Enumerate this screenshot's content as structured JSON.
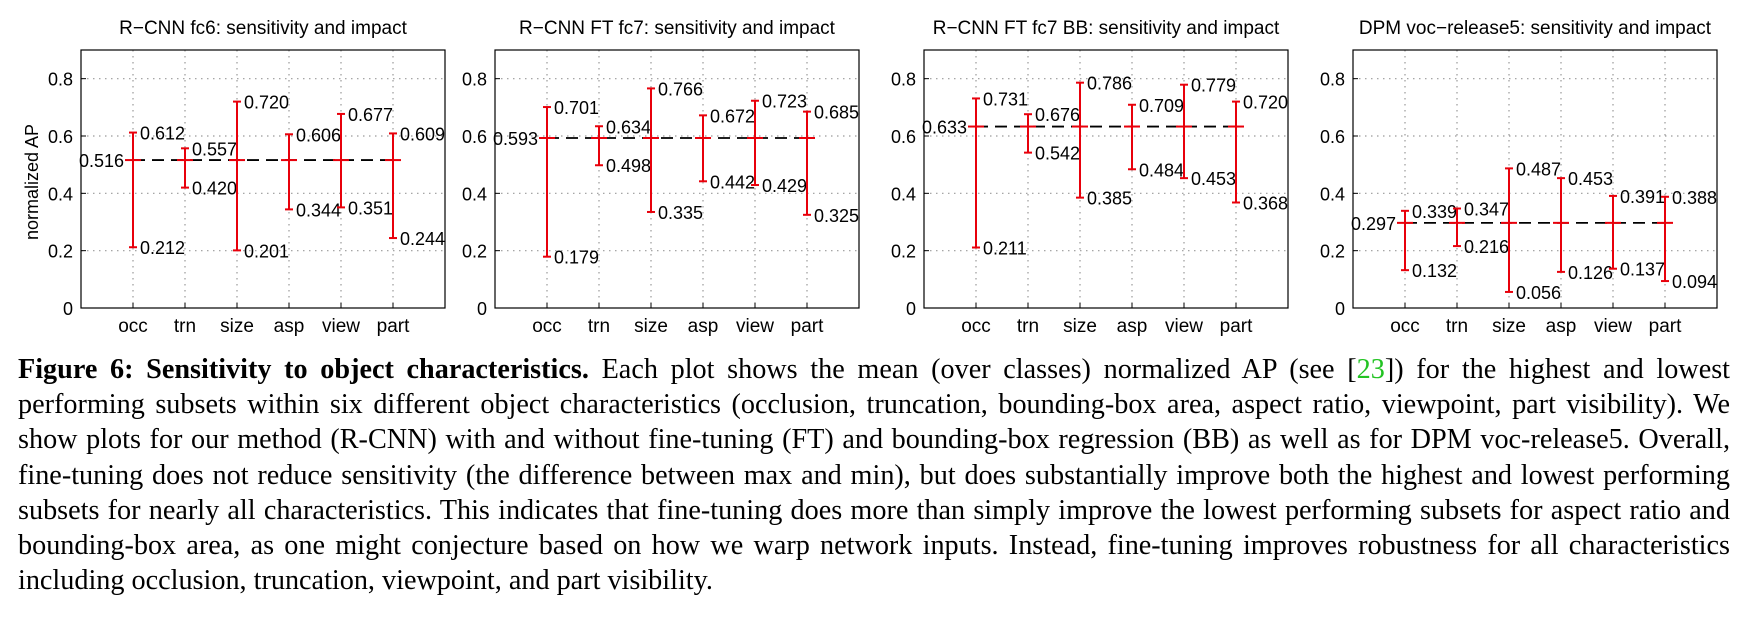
{
  "chart_data": [
    {
      "type": "errorbar",
      "title": "R−CNN fc6: sensitivity and impact",
      "ylabel": "normalized AP",
      "ylim": [
        0,
        0.9
      ],
      "yticks": [
        "0",
        "0.2",
        "0.4",
        "0.6",
        "0.8"
      ],
      "categories": [
        "occ",
        "trn",
        "size",
        "asp",
        "view",
        "part"
      ],
      "mean": 0.516,
      "mean_label": "0.516",
      "high": [
        0.612,
        0.557,
        0.72,
        0.606,
        0.677,
        0.609
      ],
      "low": [
        0.212,
        0.42,
        0.201,
        0.344,
        0.351,
        0.244
      ],
      "high_labels": [
        "0.612",
        "0.557",
        "0.720",
        "0.606",
        "0.677",
        "0.609"
      ],
      "low_labels": [
        "0.212",
        "0.420",
        "0.201",
        "0.344",
        "0.351",
        "0.244"
      ],
      "grid": true
    },
    {
      "type": "errorbar",
      "title": "R−CNN FT fc7: sensitivity and impact",
      "ylabel": "",
      "ylim": [
        0,
        0.9
      ],
      "yticks": [
        "0",
        "0.2",
        "0.4",
        "0.6",
        "0.8"
      ],
      "categories": [
        "occ",
        "trn",
        "size",
        "asp",
        "view",
        "part"
      ],
      "mean": 0.593,
      "mean_label": "0.593",
      "high": [
        0.701,
        0.634,
        0.766,
        0.672,
        0.723,
        0.685
      ],
      "low": [
        0.179,
        0.498,
        0.335,
        0.442,
        0.429,
        0.325
      ],
      "high_labels": [
        "0.701",
        "0.634",
        "0.766",
        "0.672",
        "0.723",
        "0.685"
      ],
      "low_labels": [
        "0.179",
        "0.498",
        "0.335",
        "0.442",
        "0.429",
        "0.325"
      ],
      "grid": true
    },
    {
      "type": "errorbar",
      "title": "R−CNN FT fc7 BB: sensitivity and impact",
      "ylabel": "",
      "ylim": [
        0,
        0.9
      ],
      "yticks": [
        "0",
        "0.2",
        "0.4",
        "0.6",
        "0.8"
      ],
      "categories": [
        "occ",
        "trn",
        "size",
        "asp",
        "view",
        "part"
      ],
      "mean": 0.633,
      "mean_label": "0.633",
      "high": [
        0.731,
        0.676,
        0.786,
        0.709,
        0.779,
        0.72
      ],
      "low": [
        0.211,
        0.542,
        0.385,
        0.484,
        0.453,
        0.368
      ],
      "high_labels": [
        "0.731",
        "0.676",
        "0.786",
        "0.709",
        "0.779",
        "0.720"
      ],
      "low_labels": [
        "0.211",
        "0.542",
        "0.385",
        "0.484",
        "0.453",
        "0.368"
      ],
      "grid": true
    },
    {
      "type": "errorbar",
      "title": "DPM voc−release5: sensitivity and impact",
      "ylabel": "",
      "ylim": [
        0,
        0.9
      ],
      "yticks": [
        "0",
        "0.2",
        "0.4",
        "0.6",
        "0.8"
      ],
      "categories": [
        "occ",
        "trn",
        "size",
        "asp",
        "view",
        "part"
      ],
      "mean": 0.297,
      "mean_label": "0.297",
      "high": [
        0.339,
        0.347,
        0.487,
        0.453,
        0.391,
        0.388
      ],
      "low": [
        0.132,
        0.216,
        0.056,
        0.126,
        0.137,
        0.094
      ],
      "high_labels": [
        "0.339",
        "0.347",
        "0.487",
        "0.453",
        "0.391",
        "0.388"
      ],
      "low_labels": [
        "0.132",
        "0.216",
        "0.056",
        "0.126",
        "0.137",
        "0.094"
      ],
      "grid": true
    }
  ],
  "colors": {
    "bar": "#e8000b",
    "mean_line": "#000000",
    "grid": "#9a9a9a",
    "ref_link": "#22c322"
  },
  "caption": {
    "label": "Figure 6: Sensitivity to object characteristics.",
    "text_before_ref": "Each plot shows the mean (over classes) normalized AP (see [",
    "ref": "23",
    "text_after_ref": "]) for the highest and lowest performing subsets within six different object characteristics (occlusion, truncation, bounding-box area, aspect ratio, viewpoint, part visibility). We show plots for our method (R-CNN) with and without fine-tuning (FT) and bounding-box regression (BB) as well as for DPM voc-release5. Overall, fine-tuning does not reduce sensitivity (the difference between max and min), but does substantially improve both the highest and lowest performing subsets for nearly all characteristics. This indicates that fine-tuning does more than simply improve the lowest performing subsets for aspect ratio and bounding-box area, as one might conjecture based on how we warp network inputs. Instead, fine-tuning improves robustness for all characteristics including occlusion, truncation, viewpoint, and part visibility."
  }
}
